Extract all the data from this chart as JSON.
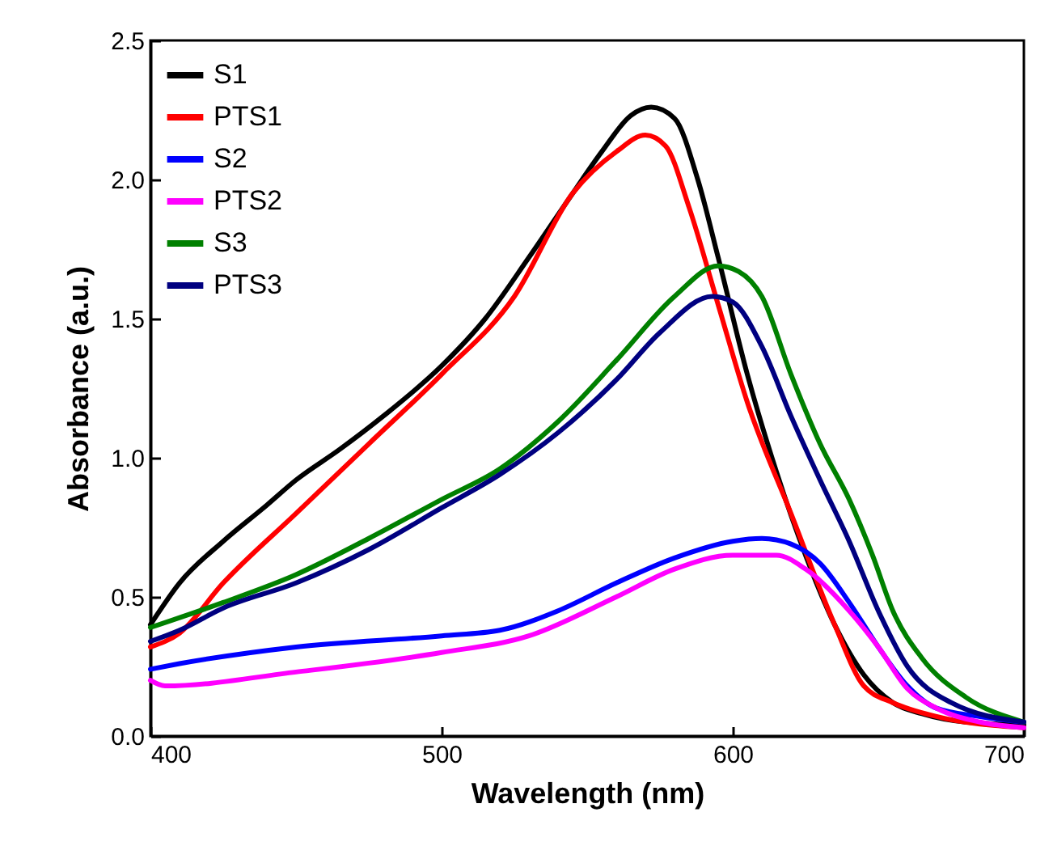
{
  "chart_data": {
    "type": "line",
    "xlabel": "Wavelength (nm)",
    "ylabel": "Absorbance (a.u.)",
    "xlim": [
      400,
      700
    ],
    "ylim": [
      0,
      2.5
    ],
    "xticks": [
      400,
      500,
      600,
      700
    ],
    "yticks": [
      {
        "value": 0,
        "label": "0.0"
      },
      {
        "value": 0.5,
        "label": "0.5"
      },
      {
        "value": 1,
        "label": "1.0"
      },
      {
        "value": 1.5,
        "label": "1.5"
      },
      {
        "value": 2,
        "label": "2.0"
      },
      {
        "value": 2.5,
        "label": "2.5"
      }
    ],
    "grid": false,
    "legend": "top left",
    "line_style": "solid",
    "marker": "none",
    "series": [
      {
        "name": "S1",
        "color": "#000000",
        "x": [
          400,
          410,
          425,
          440,
          450,
          465,
          480,
          500,
          515,
          530,
          545,
          555,
          565,
          572,
          580,
          588,
          595,
          605,
          615,
          625,
          635,
          645,
          655,
          665,
          680,
          700
        ],
        "values": [
          0.4,
          0.55,
          0.7,
          0.83,
          0.92,
          1.03,
          1.15,
          1.33,
          1.5,
          1.72,
          1.95,
          2.1,
          2.23,
          2.26,
          2.22,
          2.0,
          1.72,
          1.3,
          0.95,
          0.65,
          0.4,
          0.22,
          0.12,
          0.08,
          0.05,
          0.04
        ]
      },
      {
        "name": "PTS1",
        "color": "#ff0000",
        "x": [
          400,
          410,
          425,
          450,
          475,
          500,
          525,
          545,
          560,
          570,
          577,
          585,
          595,
          605,
          620,
          635,
          645,
          655,
          670,
          700
        ],
        "values": [
          0.32,
          0.37,
          0.55,
          0.8,
          1.05,
          1.3,
          1.58,
          1.95,
          2.1,
          2.16,
          2.12,
          1.9,
          1.55,
          1.2,
          0.8,
          0.4,
          0.18,
          0.12,
          0.07,
          0.03
        ]
      },
      {
        "name": "S2",
        "color": "#0000ff",
        "x": [
          400,
          410,
          450,
          500,
          520,
          540,
          560,
          580,
          600,
          610,
          620,
          630,
          640,
          650,
          660,
          670,
          685,
          700
        ],
        "values": [
          0.24,
          0.26,
          0.32,
          0.36,
          0.38,
          0.45,
          0.55,
          0.64,
          0.7,
          0.71,
          0.69,
          0.62,
          0.48,
          0.32,
          0.18,
          0.1,
          0.07,
          0.05
        ]
      },
      {
        "name": "PTS2",
        "color": "#ff00ff",
        "x": [
          400,
          405,
          450,
          500,
          530,
          560,
          580,
          600,
          615,
          625,
          640,
          650,
          660,
          670,
          685,
          700
        ],
        "values": [
          0.2,
          0.18,
          0.23,
          0.3,
          0.36,
          0.5,
          0.6,
          0.65,
          0.65,
          0.6,
          0.45,
          0.32,
          0.17,
          0.1,
          0.05,
          0.03
        ]
      },
      {
        "name": "S3",
        "color": "#008000",
        "x": [
          400,
          425,
          450,
          475,
          500,
          520,
          540,
          560,
          580,
          595,
          602,
          610,
          620,
          630,
          640,
          648,
          655,
          665,
          680,
          700
        ],
        "values": [
          0.39,
          0.48,
          0.58,
          0.71,
          0.85,
          0.96,
          1.13,
          1.35,
          1.58,
          1.69,
          1.67,
          1.58,
          1.3,
          1.05,
          0.85,
          0.65,
          0.45,
          0.28,
          0.14,
          0.05
        ]
      },
      {
        "name": "PTS3",
        "color": "#000080",
        "x": [
          400,
          410,
          425,
          450,
          475,
          500,
          520,
          540,
          560,
          575,
          593,
          600,
          610,
          620,
          630,
          640,
          650,
          660,
          675,
          700
        ],
        "values": [
          0.34,
          0.38,
          0.46,
          0.55,
          0.67,
          0.82,
          0.94,
          1.09,
          1.28,
          1.45,
          1.58,
          1.56,
          1.4,
          1.15,
          0.92,
          0.7,
          0.45,
          0.25,
          0.12,
          0.05
        ]
      }
    ]
  }
}
